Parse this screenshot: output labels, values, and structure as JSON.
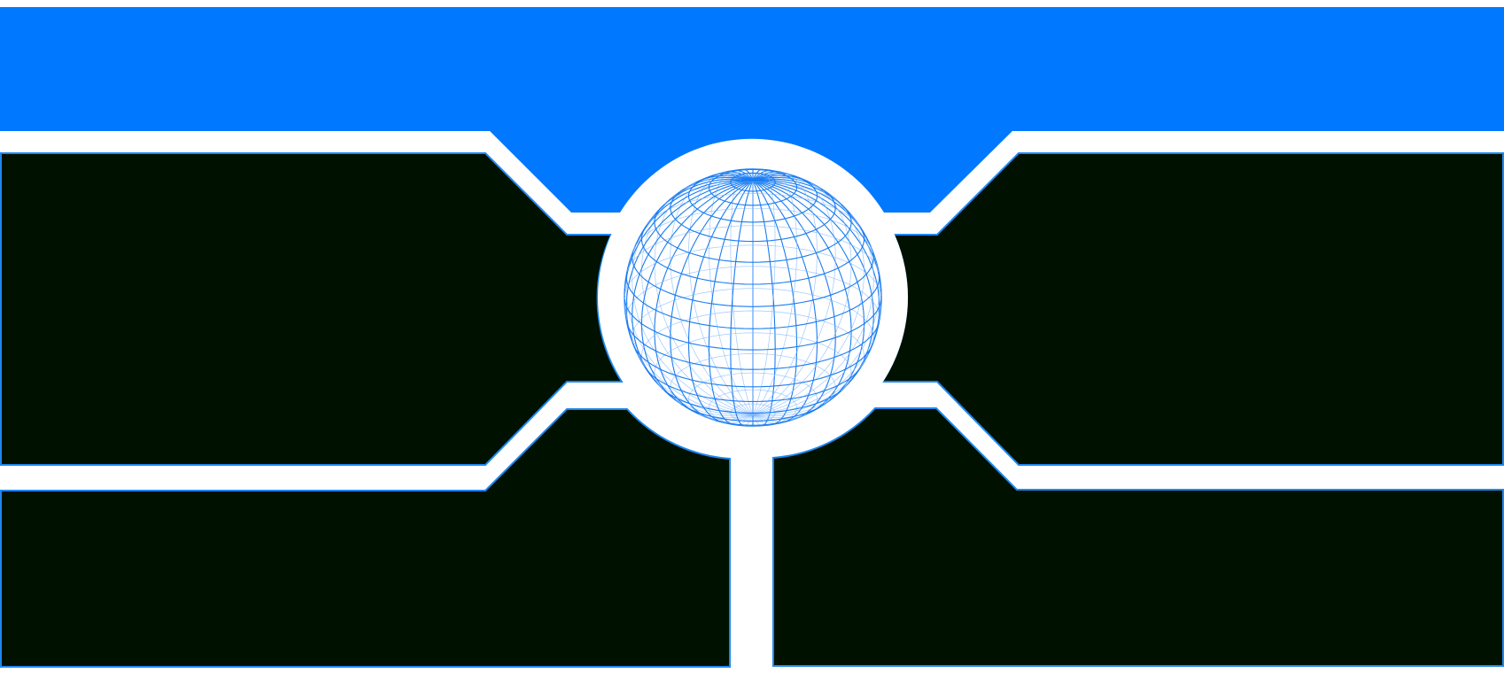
{
  "colors": {
    "background": "#ffffff",
    "header_band": "#0078ff",
    "panel_fill": "#001100",
    "panel_outline": "#1e88f0",
    "globe_line": "#1a7cf0",
    "globe_line_light": "#7fb6ff"
  },
  "icons": {
    "globe": "wireframe-globe-icon"
  },
  "panels": [
    {
      "id": "top-left"
    },
    {
      "id": "top-right"
    },
    {
      "id": "bottom-left"
    },
    {
      "id": "bottom-right"
    }
  ]
}
